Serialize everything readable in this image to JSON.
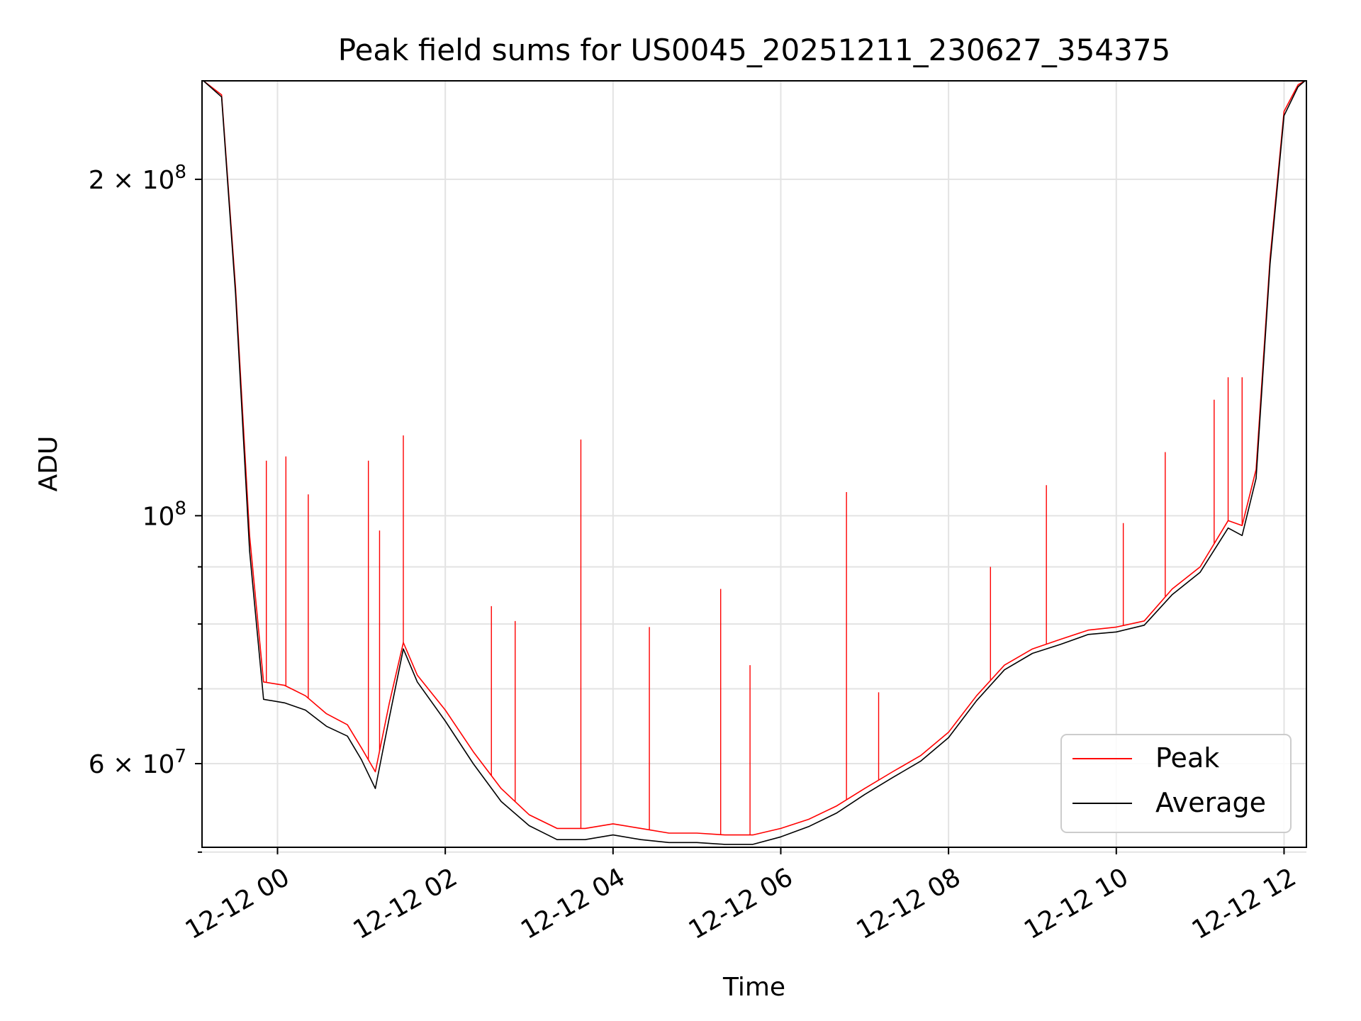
{
  "chart_data": {
    "type": "line",
    "title": "Peak field sums for US0045_20251211_230627_354375",
    "xlabel": "Time",
    "ylabel": "ADU",
    "yscale": "log",
    "ylim": [
      50500000,
      245000000
    ],
    "xlim": [
      "12-11 23:06",
      "12-12 12:16"
    ],
    "grid": true,
    "legend_position": "lower-right",
    "x_ticks": [
      "12-12 00",
      "12-12 02",
      "12-12 04",
      "12-12 06",
      "12-12 08",
      "12-12 10",
      "12-12 12"
    ],
    "y_ticks_major": [
      {
        "value": 200000000,
        "label": "2 × 10⁸",
        "base": "2 × 10",
        "exp": "8"
      },
      {
        "value": 100000000,
        "label": "10⁸",
        "base": "10",
        "exp": "8"
      },
      {
        "value": 60000000,
        "label": "6 × 10⁷",
        "base": "6 × 10",
        "exp": "7"
      }
    ],
    "y_ticks_minor": [
      50000000,
      70000000,
      80000000,
      90000000
    ],
    "series": [
      {
        "name": "Peak",
        "color": "#ff0000",
        "x": [
          "12-11 23:07",
          "12-11 23:20",
          "12-11 23:30",
          "12-11 23:40",
          "12-11 23:50",
          "12-12 00:05",
          "12-12 00:20",
          "12-12 00:35",
          "12-12 00:50",
          "12-12 01:00",
          "12-12 01:10",
          "12-12 01:20",
          "12-12 01:30",
          "12-12 01:40",
          "12-12 02:00",
          "12-12 02:20",
          "12-12 02:40",
          "12-12 03:00",
          "12-12 03:20",
          "12-12 03:40",
          "12-12 04:00",
          "12-12 04:20",
          "12-12 04:40",
          "12-12 05:00",
          "12-12 05:20",
          "12-12 05:40",
          "12-12 06:00",
          "12-12 06:20",
          "12-12 06:40",
          "12-12 07:00",
          "12-12 07:20",
          "12-12 07:40",
          "12-12 08:00",
          "12-12 08:20",
          "12-12 08:40",
          "12-12 09:00",
          "12-12 09:20",
          "12-12 09:40",
          "12-12 10:00",
          "12-12 10:20",
          "12-12 10:40",
          "12-12 11:00",
          "12-12 11:20",
          "12-12 11:30",
          "12-12 11:40",
          "12-12 11:50",
          "12-12 12:00",
          "12-12 12:10",
          "12-12 12:15"
        ],
        "y": [
          245000000,
          238000000,
          160000000,
          96000000,
          71000000,
          70500000,
          69000000,
          66500000,
          65000000,
          62000000,
          59000000,
          68000000,
          77000000,
          72000000,
          67000000,
          61500000,
          57000000,
          54000000,
          52500000,
          52500000,
          53000000,
          52500000,
          52000000,
          52000000,
          51800000,
          51800000,
          52500000,
          53500000,
          55000000,
          57000000,
          59000000,
          61000000,
          64000000,
          69000000,
          73500000,
          76000000,
          77500000,
          79000000,
          79500000,
          80500000,
          86000000,
          90000000,
          99000000,
          98000000,
          110000000,
          170000000,
          230000000,
          243000000,
          245000000
        ]
      },
      {
        "name": "Average",
        "color": "#000000",
        "x": [
          "12-11 23:07",
          "12-11 23:20",
          "12-11 23:30",
          "12-11 23:40",
          "12-11 23:50",
          "12-12 00:05",
          "12-12 00:20",
          "12-12 00:35",
          "12-12 00:50",
          "12-12 01:00",
          "12-12 01:10",
          "12-12 01:20",
          "12-12 01:30",
          "12-12 01:40",
          "12-12 02:00",
          "12-12 02:20",
          "12-12 02:40",
          "12-12 03:00",
          "12-12 03:20",
          "12-12 03:40",
          "12-12 04:00",
          "12-12 04:20",
          "12-12 04:40",
          "12-12 05:00",
          "12-12 05:20",
          "12-12 05:40",
          "12-12 06:00",
          "12-12 06:20",
          "12-12 06:40",
          "12-12 07:00",
          "12-12 07:20",
          "12-12 07:40",
          "12-12 08:00",
          "12-12 08:20",
          "12-12 08:40",
          "12-12 09:00",
          "12-12 09:20",
          "12-12 09:40",
          "12-12 10:00",
          "12-12 10:20",
          "12-12 10:40",
          "12-12 11:00",
          "12-12 11:20",
          "12-12 11:30",
          "12-12 11:40",
          "12-12 11:50",
          "12-12 12:00",
          "12-12 12:10",
          "12-12 12:15"
        ],
        "y": [
          245000000,
          237000000,
          158000000,
          93000000,
          68500000,
          68000000,
          67000000,
          64800000,
          63500000,
          60500000,
          57000000,
          66000000,
          76000000,
          71000000,
          65500000,
          60000000,
          55500000,
          52800000,
          51300000,
          51300000,
          51800000,
          51300000,
          51000000,
          51000000,
          50800000,
          50800000,
          51600000,
          52700000,
          54200000,
          56300000,
          58300000,
          60300000,
          63300000,
          68300000,
          72800000,
          75300000,
          76700000,
          78300000,
          78700000,
          79800000,
          85000000,
          89000000,
          97500000,
          96000000,
          108000000,
          168000000,
          228000000,
          242000000,
          245000000
        ]
      }
    ],
    "spikes": [
      {
        "x": "12-11 23:52",
        "y": 112000000
      },
      {
        "x": "12-12 00:06",
        "y": 113000000
      },
      {
        "x": "12-12 00:22",
        "y": 104500000
      },
      {
        "x": "12-12 01:05",
        "y": 112000000
      },
      {
        "x": "12-12 01:13",
        "y": 97000000
      },
      {
        "x": "12-12 01:30",
        "y": 118000000
      },
      {
        "x": "12-12 02:33",
        "y": 83000000
      },
      {
        "x": "12-12 02:50",
        "y": 80500000
      },
      {
        "x": "12-12 03:37",
        "y": 117000000
      },
      {
        "x": "12-12 04:26",
        "y": 79500000
      },
      {
        "x": "12-12 05:17",
        "y": 86000000
      },
      {
        "x": "12-12 05:38",
        "y": 73500000
      },
      {
        "x": "12-12 06:47",
        "y": 105000000
      },
      {
        "x": "12-12 07:10",
        "y": 69500000
      },
      {
        "x": "12-12 08:30",
        "y": 90000000
      },
      {
        "x": "12-12 09:10",
        "y": 106500000
      },
      {
        "x": "12-12 10:05",
        "y": 98500000
      },
      {
        "x": "12-12 10:35",
        "y": 114000000
      },
      {
        "x": "12-12 11:10",
        "y": 127000000
      },
      {
        "x": "12-12 11:20",
        "y": 133000000
      },
      {
        "x": "12-12 11:30",
        "y": 133000000
      }
    ]
  }
}
